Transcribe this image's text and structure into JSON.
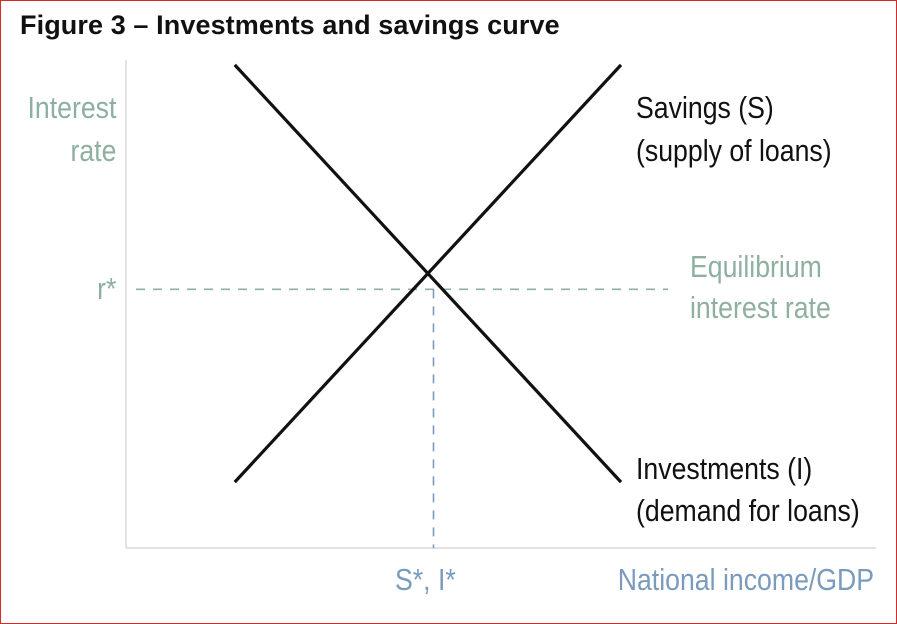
{
  "chart_data": {
    "type": "line",
    "title": "Figure 3 – Investments and savings curve",
    "ylabel": [
      "Interest",
      "rate"
    ],
    "xlabel": "National income/GDP",
    "xlim": [
      0,
      10
    ],
    "ylim": [
      0,
      10
    ],
    "series": [
      {
        "name": [
          "Savings (S)",
          "(supply of loans)"
        ],
        "x": [
          1.45,
          6.6
        ],
        "y": [
          1.35,
          9.9
        ],
        "color": "#111111"
      },
      {
        "name": [
          "Investments (I)",
          "(demand for loans)"
        ],
        "x": [
          1.45,
          6.6
        ],
        "y": [
          9.9,
          1.35
        ],
        "color": "#111111"
      }
    ],
    "equilibrium": {
      "x": 4.1,
      "y": 5.3,
      "x_label": "S*, I*",
      "y_label": "r*",
      "note": [
        "Equilibrium",
        "interest rate"
      ]
    },
    "colors": {
      "axis_text": "#8fb0a1",
      "x_axis_text": "#7b9bbd",
      "guide_h": "#8fb0a1",
      "guide_v": "#7b9bbd",
      "axis_line": "#d0d0d0",
      "border": "#d42a2a"
    },
    "grid": false
  }
}
